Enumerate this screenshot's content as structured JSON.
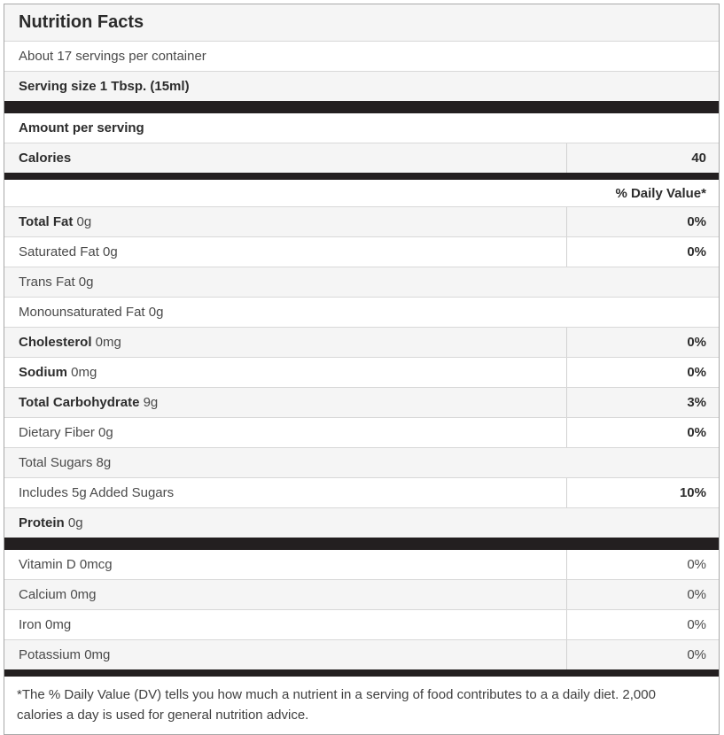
{
  "label": {
    "title": "Nutrition Facts",
    "servings_per_container": "About 17 servings per container",
    "serving_size": "Serving size 1 Tbsp. (15ml)",
    "amount_per_serving": "Amount per serving",
    "calories_label": "Calories",
    "calories_value": "40",
    "daily_value_header": "% Daily Value*",
    "nutrients": [
      {
        "bold": "Total Fat",
        "rest": " 0g",
        "dv": "0%"
      },
      {
        "bold": "",
        "rest": "Saturated Fat 0g",
        "dv": "0%"
      },
      {
        "bold": "",
        "rest": "Trans Fat 0g",
        "dv": ""
      },
      {
        "bold": "",
        "rest": "Monounsaturated Fat 0g",
        "dv": ""
      },
      {
        "bold": "Cholesterol",
        "rest": " 0mg",
        "dv": "0%"
      },
      {
        "bold": "Sodium",
        "rest": " 0mg",
        "dv": "0%"
      },
      {
        "bold": "Total Carbohydrate",
        "rest": " 9g",
        "dv": "3%"
      },
      {
        "bold": "",
        "rest": "Dietary Fiber 0g",
        "dv": "0%"
      },
      {
        "bold": "",
        "rest": "Total Sugars 8g",
        "dv": ""
      },
      {
        "bold": "",
        "rest": "Includes 5g Added Sugars",
        "dv": "10%"
      },
      {
        "bold": "Protein",
        "rest": " 0g",
        "dv": ""
      }
    ],
    "micronutrients": [
      {
        "name": "Vitamin D 0mcg",
        "dv": "0%"
      },
      {
        "name": "Calcium 0mg",
        "dv": "0%"
      },
      {
        "name": "Iron 0mg",
        "dv": "0%"
      },
      {
        "name": "Potassium 0mg",
        "dv": "0%"
      }
    ],
    "footnote": "*The % Daily Value (DV) tells you how much a nutrient in a serving of food contributes to a a daily diet. 2,000 calories a day is used for general nutrition advice.",
    "colors": {
      "separator_bar": "#231f20",
      "row_shade": "#f5f5f5",
      "row_border": "#d8d8d8",
      "outer_border": "#a8a8a8",
      "bold_text": "#2d2d2d",
      "regular_text": "#4a4a4a"
    }
  }
}
